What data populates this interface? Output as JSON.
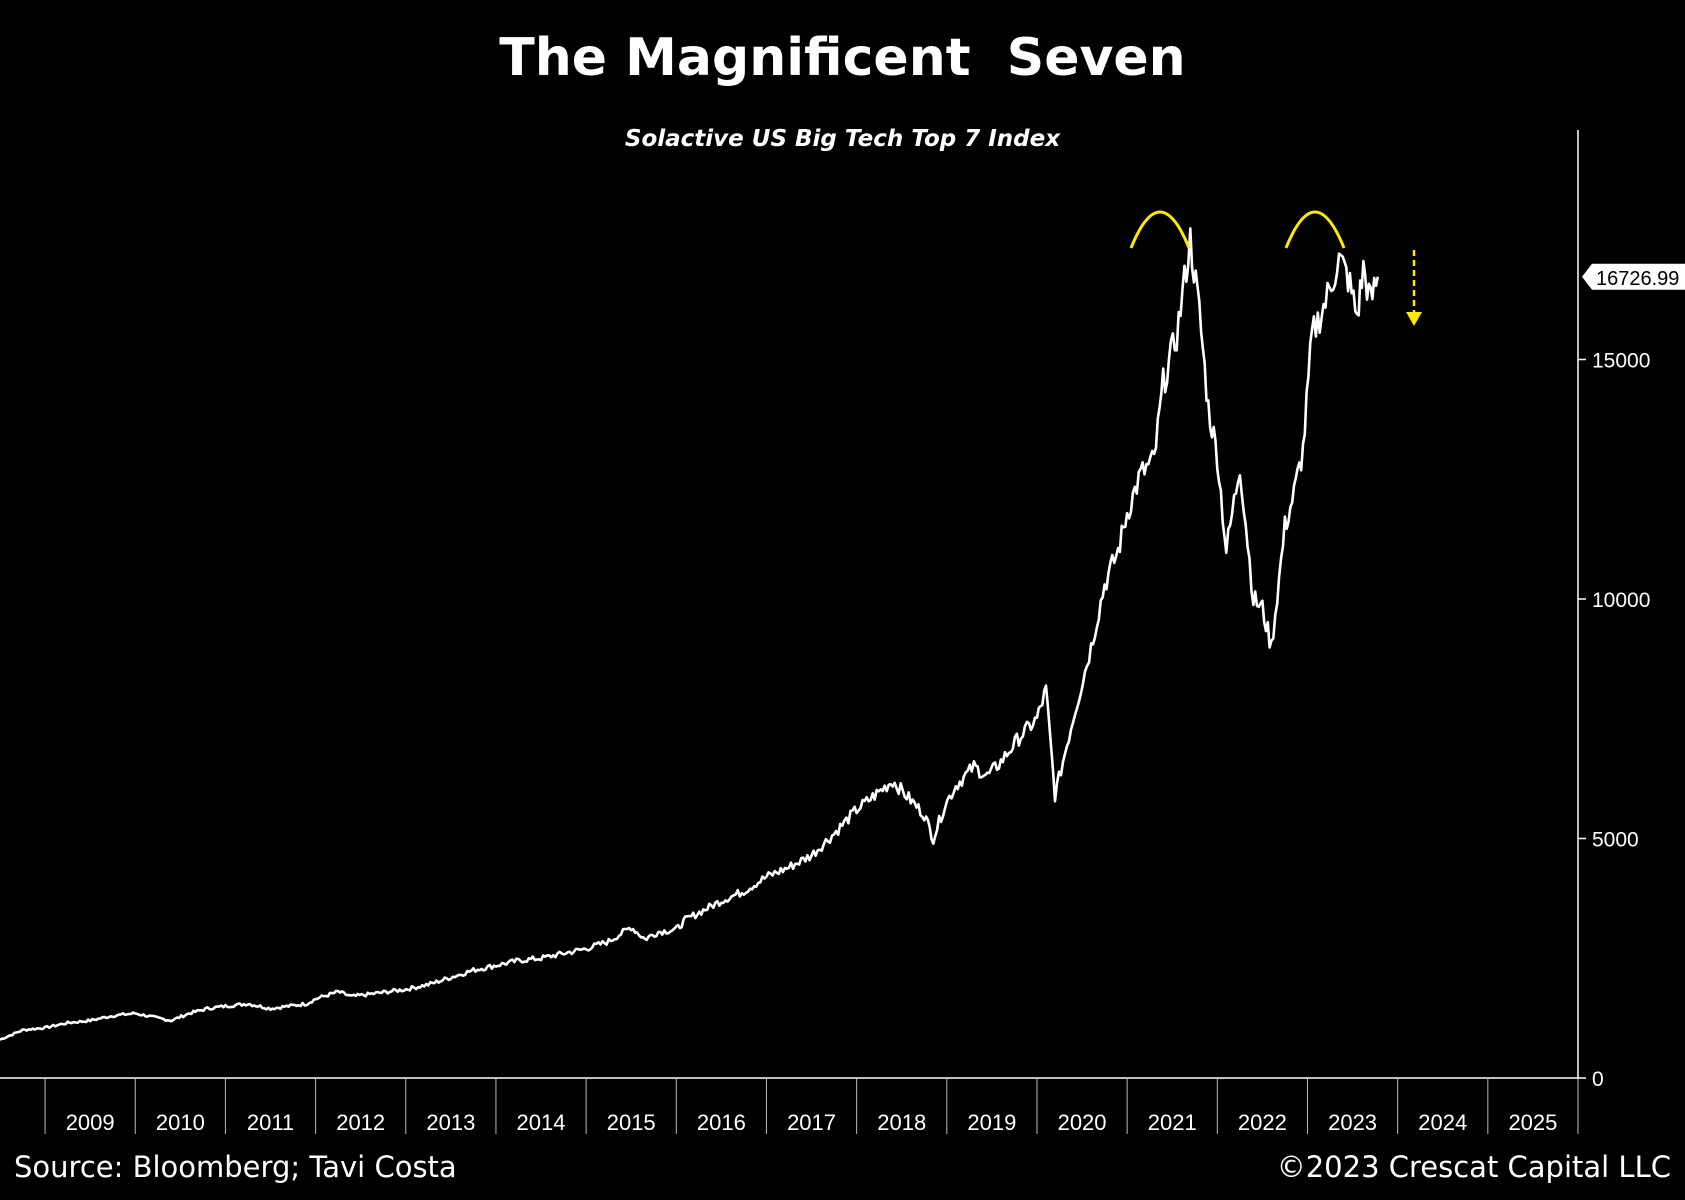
{
  "title": "The Magnificent  Seven",
  "subtitle": "Solactive US Big Tech Top 7 Index",
  "footer": {
    "source": "Source: Bloomberg; Tavi Costa",
    "copyright": "©2023 Crescat Capital LLC"
  },
  "colors": {
    "background": "#000000",
    "line": "#ffffff",
    "annotation": "#ffea00"
  },
  "chart_data": {
    "type": "line",
    "title": "The Magnificent  Seven",
    "subtitle": "Solactive US Big Tech Top 7 Index",
    "xlabel": "",
    "ylabel": "",
    "x_tick_labels": [
      "2009",
      "2010",
      "2011",
      "2012",
      "2013",
      "2014",
      "2015",
      "2016",
      "2017",
      "2018",
      "2019",
      "2020",
      "2021",
      "2022",
      "2023",
      "2024",
      "2025"
    ],
    "xlim": [
      2008.5,
      2026.0
    ],
    "y_axis_side": "right",
    "y_ticks": [
      0,
      5000,
      10000,
      15000
    ],
    "ylim": [
      -200,
      20000
    ],
    "grid": false,
    "last_value_label": "16726.99",
    "annotations": [
      "double-top arcs over the 2021 and 2023 peaks",
      "dashed downward arrow after last value"
    ],
    "series": [
      {
        "x": [
          2008.5,
          2008.75,
          2009.0,
          2009.25,
          2009.5,
          2009.75,
          2010.0,
          2010.25,
          2010.4,
          2010.6,
          2010.8,
          2011.0,
          2011.25,
          2011.5,
          2011.7,
          2011.9,
          2012.0,
          2012.25,
          2012.4,
          2012.6,
          2012.8,
          2013.0,
          2013.25,
          2013.5,
          2013.75,
          2014.0,
          2014.25,
          2014.5,
          2014.75,
          2015.0,
          2015.25,
          2015.5,
          2015.65,
          2015.8,
          2016.0,
          2016.1,
          2016.3,
          2016.5,
          2016.75,
          2017.0,
          2017.25,
          2017.5,
          2017.75,
          2018.0,
          2018.2,
          2018.4,
          2018.6,
          2018.75,
          2018.85,
          2018.98,
          2019.1,
          2019.3,
          2019.45,
          2019.6,
          2019.8,
          2020.0,
          2020.1,
          2020.2,
          2020.4,
          2020.6,
          2020.75,
          2020.9,
          2021.0,
          2021.15,
          2021.3,
          2021.4,
          2021.55,
          2021.7,
          2021.8,
          2021.9,
          2022.0,
          2022.1,
          2022.25,
          2022.4,
          2022.5,
          2022.6,
          2022.75,
          2022.85,
          2022.95,
          2023.05,
          2023.2,
          2023.35,
          2023.45,
          2023.55,
          2023.62,
          2023.7,
          2023.78
        ],
        "y": [
          800,
          1000,
          1050,
          1150,
          1200,
          1300,
          1350,
          1250,
          1200,
          1350,
          1450,
          1500,
          1550,
          1450,
          1500,
          1550,
          1650,
          1800,
          1700,
          1750,
          1800,
          1850,
          1950,
          2100,
          2250,
          2350,
          2450,
          2500,
          2600,
          2700,
          2850,
          3150,
          2900,
          3050,
          3100,
          3300,
          3500,
          3700,
          3900,
          4200,
          4400,
          4650,
          5100,
          5600,
          5900,
          6200,
          5800,
          5500,
          5000,
          5700,
          6100,
          6500,
          6300,
          6600,
          7100,
          7500,
          8100,
          5900,
          7500,
          9000,
          10300,
          11000,
          11800,
          12600,
          12900,
          14500,
          15500,
          17500,
          16000,
          14000,
          13000,
          11000,
          12800,
          10000,
          9800,
          9000,
          11500,
          12200,
          13100,
          15500,
          16200,
          17100,
          16700,
          15900,
          16900,
          16200,
          16726.99
        ]
      }
    ]
  }
}
